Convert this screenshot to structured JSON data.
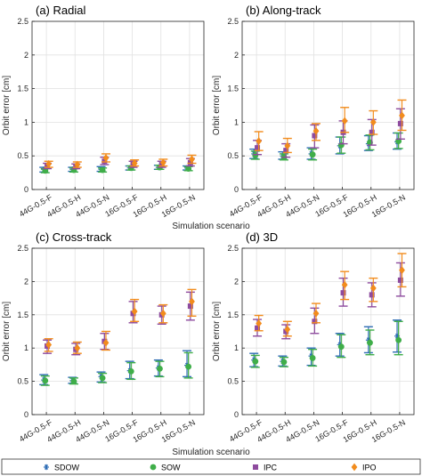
{
  "colors": {
    "SDOW": "#2f6db5",
    "SOW": "#3fae49",
    "IPC": "#8e4b9e",
    "IPO": "#f28c1d"
  },
  "figure": {
    "xlabel": "Simulation scenario",
    "ylabel": "Orbit error [cm]"
  },
  "legend": {
    "placement": "bottom",
    "entries": [
      "SDOW",
      "SOW",
      "IPC",
      "IPO"
    ]
  },
  "chart_data": [
    {
      "type": "scatter",
      "title": "(a) Radial",
      "xlabel": "Simulation scenario",
      "ylabel": "Orbit error [cm]",
      "ylim": [
        0,
        2.5
      ],
      "yticks": [
        "0",
        "0.5",
        "1",
        "1.5",
        "2",
        "2.5"
      ],
      "grid": true,
      "categories": [
        "44G-0.5-F",
        "44G-0.5-H",
        "44G-0.5-N",
        "16G-0.5-F",
        "16G-0.5-H",
        "16G-0.5-N"
      ],
      "series": [
        {
          "name": "SDOW",
          "values": [
            0.3,
            0.3,
            0.3,
            0.32,
            0.33,
            0.32
          ],
          "lower": [
            0.26,
            0.27,
            0.27,
            0.29,
            0.3,
            0.29
          ],
          "upper": [
            0.33,
            0.33,
            0.34,
            0.35,
            0.36,
            0.35
          ]
        },
        {
          "name": "SOW",
          "values": [
            0.28,
            0.29,
            0.29,
            0.32,
            0.33,
            0.31
          ],
          "lower": [
            0.25,
            0.26,
            0.26,
            0.29,
            0.3,
            0.28
          ],
          "upper": [
            0.31,
            0.32,
            0.32,
            0.35,
            0.36,
            0.34
          ]
        },
        {
          "name": "IPC",
          "values": [
            0.35,
            0.34,
            0.42,
            0.37,
            0.37,
            0.4
          ],
          "lower": [
            0.31,
            0.31,
            0.37,
            0.33,
            0.33,
            0.35
          ],
          "upper": [
            0.39,
            0.38,
            0.48,
            0.42,
            0.42,
            0.46
          ]
        },
        {
          "name": "IPO",
          "values": [
            0.38,
            0.37,
            0.47,
            0.39,
            0.4,
            0.45
          ],
          "lower": [
            0.33,
            0.33,
            0.41,
            0.35,
            0.35,
            0.39
          ],
          "upper": [
            0.42,
            0.41,
            0.53,
            0.44,
            0.45,
            0.51
          ]
        }
      ]
    },
    {
      "type": "scatter",
      "title": "(b) Along-track",
      "xlabel": "Simulation scenario",
      "ylabel": "Orbit error [cm]",
      "ylim": [
        0,
        2.5
      ],
      "yticks": [
        "0",
        "0.5",
        "1",
        "1.5",
        "2",
        "2.5"
      ],
      "grid": true,
      "categories": [
        "44G-0.5-F",
        "44G-0.5-H",
        "44G-0.5-N",
        "16G-0.5-F",
        "16G-0.5-H",
        "16G-0.5-N"
      ],
      "series": [
        {
          "name": "SDOW",
          "values": [
            0.53,
            0.5,
            0.53,
            0.65,
            0.68,
            0.71
          ],
          "lower": [
            0.46,
            0.45,
            0.45,
            0.53,
            0.58,
            0.6
          ],
          "upper": [
            0.6,
            0.56,
            0.62,
            0.78,
            0.8,
            0.84
          ]
        },
        {
          "name": "SOW",
          "values": [
            0.51,
            0.48,
            0.52,
            0.66,
            0.7,
            0.72
          ],
          "lower": [
            0.45,
            0.44,
            0.44,
            0.54,
            0.59,
            0.61
          ],
          "upper": [
            0.57,
            0.53,
            0.6,
            0.78,
            0.81,
            0.84
          ]
        },
        {
          "name": "IPC",
          "values": [
            0.62,
            0.58,
            0.8,
            0.85,
            0.85,
            0.98
          ],
          "lower": [
            0.52,
            0.48,
            0.62,
            0.68,
            0.66,
            0.75
          ],
          "upper": [
            0.73,
            0.68,
            0.96,
            1.02,
            1.04,
            1.2
          ]
        },
        {
          "name": "IPO",
          "values": [
            0.72,
            0.65,
            0.87,
            1.02,
            1.0,
            1.1
          ],
          "lower": [
            0.58,
            0.55,
            0.73,
            0.85,
            0.82,
            0.88
          ],
          "upper": [
            0.86,
            0.76,
            0.98,
            1.22,
            1.17,
            1.33
          ]
        }
      ]
    },
    {
      "type": "scatter",
      "title": "(c) Cross-track",
      "xlabel": "Simulation scenario",
      "ylabel": "Orbit error [cm]",
      "ylim": [
        0,
        2.5
      ],
      "yticks": [
        "0",
        "0.5",
        "1",
        "1.5",
        "2",
        "2.5"
      ],
      "grid": true,
      "categories": [
        "44G-0.5-F",
        "44G-0.5-H",
        "44G-0.5-N",
        "16G-0.5-F",
        "16G-0.5-H",
        "16G-0.5-N"
      ],
      "series": [
        {
          "name": "SDOW",
          "values": [
            0.52,
            0.51,
            0.57,
            0.66,
            0.7,
            0.74
          ],
          "lower": [
            0.45,
            0.47,
            0.49,
            0.54,
            0.58,
            0.57
          ],
          "upper": [
            0.6,
            0.56,
            0.64,
            0.8,
            0.82,
            0.96
          ]
        },
        {
          "name": "SOW",
          "values": [
            0.51,
            0.5,
            0.55,
            0.65,
            0.69,
            0.72
          ],
          "lower": [
            0.44,
            0.46,
            0.48,
            0.53,
            0.57,
            0.55
          ],
          "upper": [
            0.58,
            0.55,
            0.62,
            0.78,
            0.8,
            0.93
          ]
        },
        {
          "name": "IPC",
          "values": [
            1.03,
            0.98,
            1.1,
            1.52,
            1.5,
            1.63
          ],
          "lower": [
            0.92,
            0.9,
            0.98,
            1.38,
            1.36,
            1.42
          ],
          "upper": [
            1.12,
            1.07,
            1.22,
            1.7,
            1.63,
            1.84
          ]
        },
        {
          "name": "IPO",
          "values": [
            1.05,
            1.0,
            1.08,
            1.55,
            1.52,
            1.7
          ],
          "lower": [
            0.95,
            0.92,
            0.97,
            1.4,
            1.38,
            1.48
          ],
          "upper": [
            1.14,
            1.09,
            1.25,
            1.73,
            1.65,
            1.88
          ]
        }
      ]
    },
    {
      "type": "scatter",
      "title": "(d) 3D",
      "xlabel": "Simulation scenario",
      "ylabel": "Orbit error [cm]",
      "ylim": [
        0,
        2.5
      ],
      "yticks": [
        "0",
        "0.5",
        "1",
        "1.5",
        "2",
        "2.5"
      ],
      "grid": true,
      "categories": [
        "44G-0.5-F",
        "44G-0.5-H",
        "44G-0.5-N",
        "16G-0.5-F",
        "16G-0.5-H",
        "16G-0.5-N"
      ],
      "series": [
        {
          "name": "SDOW",
          "values": [
            0.82,
            0.8,
            0.88,
            1.05,
            1.12,
            1.18
          ],
          "lower": [
            0.72,
            0.73,
            0.74,
            0.88,
            0.93,
            0.94
          ],
          "upper": [
            0.92,
            0.88,
            1.0,
            1.22,
            1.32,
            1.42
          ]
        },
        {
          "name": "SOW",
          "values": [
            0.8,
            0.79,
            0.85,
            1.02,
            1.08,
            1.12
          ],
          "lower": [
            0.71,
            0.72,
            0.73,
            0.86,
            0.9,
            0.9
          ],
          "upper": [
            0.89,
            0.86,
            0.98,
            1.2,
            1.27,
            1.4
          ]
        },
        {
          "name": "IPC",
          "values": [
            1.3,
            1.25,
            1.4,
            1.83,
            1.8,
            2.02
          ],
          "lower": [
            1.18,
            1.14,
            1.22,
            1.63,
            1.62,
            1.78
          ],
          "upper": [
            1.43,
            1.35,
            1.6,
            2.05,
            1.98,
            2.28
          ]
        },
        {
          "name": "IPO",
          "values": [
            1.37,
            1.28,
            1.52,
            1.95,
            1.9,
            2.17
          ],
          "lower": [
            1.26,
            1.18,
            1.38,
            1.73,
            1.7,
            1.92
          ],
          "upper": [
            1.49,
            1.4,
            1.67,
            2.15,
            2.05,
            2.42
          ]
        }
      ]
    }
  ]
}
